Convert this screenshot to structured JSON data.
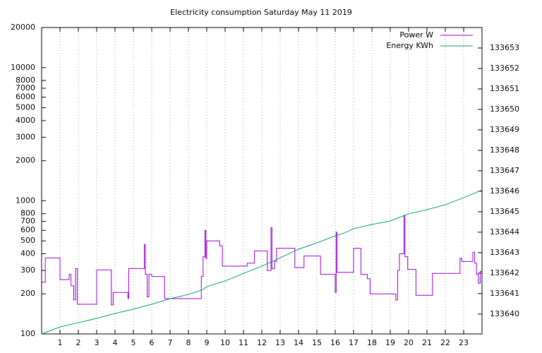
{
  "chart_data": {
    "type": "line",
    "title": "Electricity consumption Saturday May 11 2019",
    "xlim": [
      0,
      24
    ],
    "xticks": [
      1,
      2,
      3,
      4,
      5,
      6,
      7,
      8,
      9,
      10,
      11,
      12,
      13,
      14,
      15,
      16,
      17,
      18,
      19,
      20,
      21,
      22,
      23
    ],
    "ylim": [
      100,
      20000
    ],
    "log_y": true,
    "yticks": [
      100,
      200,
      300,
      400,
      500,
      600,
      700,
      800,
      1000,
      2000,
      3000,
      4000,
      5000,
      6000,
      7000,
      8000,
      10000,
      20000
    ],
    "y2lim": [
      133639.03,
      133654
    ],
    "y2ticks": [
      133640,
      133641,
      133642,
      133643,
      133644,
      133645,
      133646,
      133647,
      133648,
      133649,
      133650,
      133651,
      133652,
      133653
    ],
    "grid_x": true,
    "legend": "top-right",
    "series": [
      {
        "name": "Power W",
        "color": "#9400d3",
        "x": [
          0,
          0.2,
          0.2,
          1.0,
          1.0,
          1.5,
          1.5,
          1.6,
          1.6,
          1.75,
          1.75,
          1.85,
          1.85,
          1.95,
          1.95,
          3.0,
          3.0,
          3.8,
          3.8,
          3.9,
          3.9,
          4.7,
          4.7,
          4.75,
          4.75,
          5.6,
          5.6,
          5.65,
          5.65,
          5.75,
          5.75,
          5.85,
          5.85,
          6.0,
          6.0,
          6.7,
          6.7,
          8.7,
          8.7,
          8.8,
          8.8,
          8.9,
          8.9,
          8.95,
          8.95,
          9.0,
          9.0,
          9.7,
          9.7,
          9.85,
          9.85,
          11.2,
          11.2,
          11.6,
          11.6,
          12.3,
          12.3,
          12.5,
          12.5,
          12.55,
          12.55,
          12.7,
          12.7,
          12.8,
          12.8,
          13.8,
          13.8,
          14.3,
          14.3,
          15.2,
          15.2,
          16.0,
          16.0,
          16.05,
          16.05,
          16.1,
          16.1,
          17.0,
          17.0,
          17.4,
          17.4,
          17.75,
          17.75,
          17.9,
          17.9,
          19.3,
          19.3,
          19.4,
          19.4,
          19.5,
          19.5,
          19.75,
          19.75,
          19.8,
          19.8,
          19.95,
          19.95,
          20.4,
          20.4,
          21.3,
          21.3,
          22.8,
          22.8,
          22.9,
          22.9,
          23.5,
          23.5,
          23.6,
          23.6,
          23.7,
          23.7,
          23.8,
          23.8,
          23.9,
          23.9,
          24
        ],
        "values": [
          245,
          245,
          372,
          372,
          256,
          256,
          280,
          280,
          230,
          230,
          180,
          180,
          310,
          310,
          167,
          167,
          303,
          303,
          165,
          165,
          205,
          205,
          185,
          185,
          310,
          310,
          470,
          470,
          280,
          280,
          190,
          190,
          280,
          280,
          270,
          270,
          184,
          184,
          270,
          270,
          380,
          380,
          600,
          600,
          370,
          370,
          500,
          500,
          460,
          460,
          323,
          323,
          340,
          340,
          420,
          420,
          300,
          300,
          630,
          630,
          310,
          310,
          350,
          350,
          440,
          440,
          315,
          315,
          385,
          385,
          280,
          280,
          205,
          205,
          580,
          580,
          290,
          290,
          440,
          440,
          280,
          280,
          260,
          260,
          200,
          200,
          180,
          180,
          300,
          300,
          400,
          400,
          780,
          780,
          380,
          380,
          305,
          305,
          195,
          195,
          285,
          285,
          370,
          370,
          350,
          350,
          410,
          410,
          340,
          340,
          280,
          280,
          240,
          240,
          295,
          295
        ]
      },
      {
        "name": "Energy KWh",
        "color": "#009e73",
        "axis": "y2",
        "x": [
          0,
          1,
          2,
          3,
          4,
          5,
          6,
          7,
          8,
          8.8,
          9,
          10,
          11,
          12,
          13,
          14,
          15,
          16,
          16.5,
          17,
          18,
          19,
          19.8,
          20,
          21,
          22,
          23,
          24
        ],
        "values": [
          133639.03,
          133639.37,
          133639.58,
          133639.79,
          133640.03,
          133640.24,
          133640.48,
          133640.75,
          133640.96,
          133641.2,
          133641.34,
          133641.62,
          133641.99,
          133642.34,
          133642.75,
          133643.17,
          133643.48,
          133643.82,
          133643.96,
          133644.17,
          133644.38,
          133644.55,
          133644.83,
          133644.9,
          133645.1,
          133645.34,
          133645.69,
          133646.06
        ]
      }
    ]
  }
}
